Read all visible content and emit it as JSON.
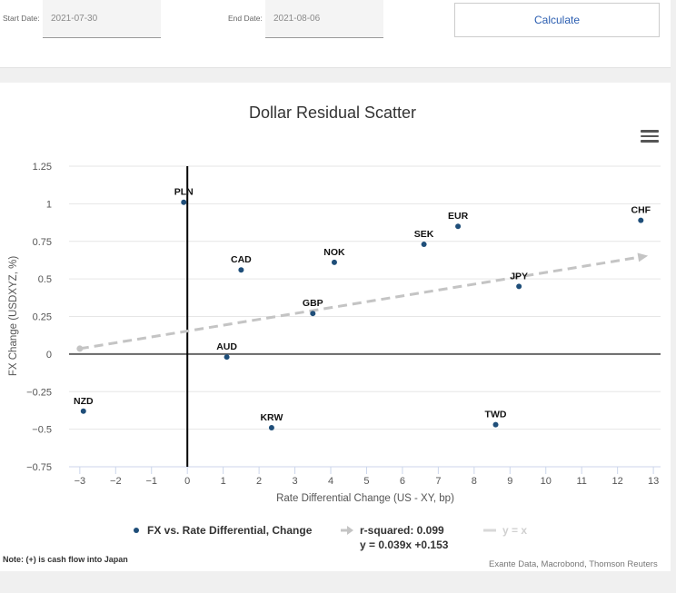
{
  "form": {
    "start_label": "Start Date:",
    "start_value": "2021-07-30",
    "end_label": "End Date:",
    "end_value": "2021-08-06",
    "calculate_label": "Calculate"
  },
  "chart_data": {
    "type": "scatter",
    "title": "Dollar Residual Scatter",
    "xlabel": "Rate Differential Change (US - XY, bp)",
    "ylabel": "FX Change (USDXYZ, %)",
    "xlim": [
      -3.3,
      13.2
    ],
    "ylim": [
      -0.75,
      1.25
    ],
    "x_ticks": [
      -3,
      -2,
      -1,
      0,
      1,
      2,
      3,
      4,
      5,
      6,
      7,
      8,
      9,
      10,
      11,
      12,
      13
    ],
    "y_ticks": [
      1.25,
      1,
      0.75,
      0.5,
      0.25,
      0,
      -0.25,
      -0.5,
      -0.75
    ],
    "y_tick_labels": [
      "1.25",
      "1",
      "0.75",
      "0.5",
      "0.25",
      "0",
      "−0.25",
      "−0.5",
      "−0.75"
    ],
    "x_tick_labels": [
      "−3",
      "−2",
      "−1",
      "0",
      "1",
      "2",
      "3",
      "4",
      "5",
      "6",
      "7",
      "8",
      "9",
      "10",
      "11",
      "12",
      "13"
    ],
    "grid": true,
    "series": [
      {
        "name": "FX vs. Rate Differential, Change",
        "color": "#1f4e79",
        "points": [
          {
            "label": "PLN",
            "x": -0.1,
            "y": 1.01
          },
          {
            "label": "CHF",
            "x": 12.65,
            "y": 0.89
          },
          {
            "label": "EUR",
            "x": 7.55,
            "y": 0.85
          },
          {
            "label": "SEK",
            "x": 6.6,
            "y": 0.73
          },
          {
            "label": "NOK",
            "x": 4.1,
            "y": 0.61
          },
          {
            "label": "CAD",
            "x": 1.5,
            "y": 0.56
          },
          {
            "label": "JPY",
            "x": 9.25,
            "y": 0.45
          },
          {
            "label": "GBP",
            "x": 3.5,
            "y": 0.27
          },
          {
            "label": "AUD",
            "x": 1.1,
            "y": -0.02
          },
          {
            "label": "NZD",
            "x": -2.9,
            "y": -0.38
          },
          {
            "label": "TWD",
            "x": 8.6,
            "y": -0.47
          },
          {
            "label": "KRW",
            "x": 2.35,
            "y": -0.49
          }
        ]
      }
    ],
    "regression": {
      "name": "r-squared: 0.099",
      "equation": "y = 0.039x +0.153",
      "slope": 0.039,
      "intercept": 0.153,
      "x_range": [
        -3,
        12.7
      ],
      "color": "#c4c4c4"
    },
    "identity_line": {
      "name": "y = x",
      "color": "#d0d0d0"
    },
    "legend_position": "bottom"
  },
  "footer": {
    "note": "Note: (+) is cash flow into Japan",
    "source": "Exante Data, Macrobond, Thomson Reuters"
  },
  "icons": {
    "menu": "hamburger-menu-icon"
  }
}
